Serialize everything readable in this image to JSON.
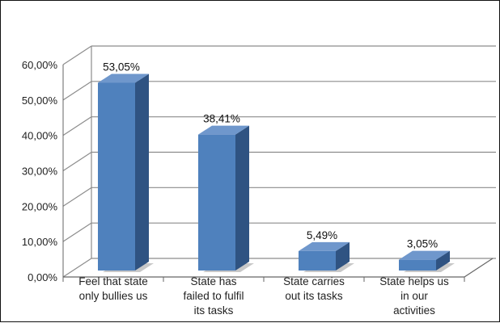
{
  "chart_data": {
    "type": "bar",
    "title": "",
    "xlabel": "",
    "ylabel": "",
    "categories": [
      [
        "Feel that state",
        "only bullies us"
      ],
      [
        "State has",
        "failed to fulfil",
        "its tasks"
      ],
      [
        "State carries",
        "out its tasks"
      ],
      [
        "State helps us",
        "in our",
        "activities"
      ]
    ],
    "values": [
      53.05,
      38.41,
      5.49,
      3.05
    ],
    "data_labels": [
      "53,05%",
      "38,41%",
      "5,49%",
      "3,05%"
    ],
    "yticks": [
      0,
      10,
      20,
      30,
      40,
      50,
      60
    ],
    "ytick_labels": [
      "0,00%",
      "10,00%",
      "20,00%",
      "30,00%",
      "40,00%",
      "50,00%",
      "60,00%"
    ],
    "ylim": [
      0,
      60
    ],
    "grid": true,
    "legend": "none",
    "three_d": true,
    "colors": {
      "bar_front": "#4f81bd",
      "bar_side": "#2f5382",
      "bar_top": "#6f97cc",
      "grid": "#8c8c8c",
      "floor_shadow": "#c8c8c8"
    }
  }
}
